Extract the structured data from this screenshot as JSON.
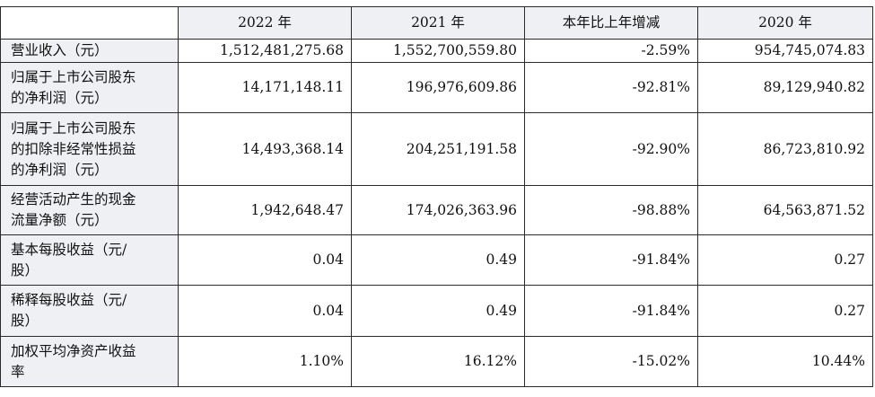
{
  "table": {
    "headers": [
      "2022 年",
      "2021 年",
      "本年比上年增减",
      "2020 年"
    ],
    "rows": [
      {
        "label_lines": [
          "营业收入（元）"
        ],
        "values": [
          "1,512,481,275.68",
          "1,552,700,559.80",
          "-2.59%",
          "954,745,074.83"
        ]
      },
      {
        "label_lines": [
          "归属于上市公司股东",
          "的净利润（元）"
        ],
        "values": [
          "14,171,148.11",
          "196,976,609.86",
          "-92.81%",
          "89,129,940.82"
        ]
      },
      {
        "label_lines": [
          "归属于上市公司股东",
          "的扣除非经常性损益",
          "的净利润（元）"
        ],
        "values": [
          "14,493,368.14",
          "204,251,191.58",
          "-92.90%",
          "86,723,810.92"
        ]
      },
      {
        "label_lines": [
          "经营活动产生的现金",
          "流量净额（元）"
        ],
        "values": [
          "1,942,648.47",
          "174,026,363.96",
          "-98.88%",
          "64,563,871.52"
        ]
      },
      {
        "label_lines": [
          "基本每股收益（元/",
          "股）"
        ],
        "values": [
          "0.04",
          "0.49",
          "-91.84%",
          "0.27"
        ]
      },
      {
        "label_lines": [
          "稀释每股收益（元/",
          "股）"
        ],
        "values": [
          "0.04",
          "0.49",
          "-91.84%",
          "0.27"
        ]
      },
      {
        "label_lines": [
          "加权平均净资产收益",
          "率"
        ],
        "values": [
          "1.10%",
          "16.12%",
          "-15.02%",
          "10.44%"
        ]
      }
    ]
  }
}
